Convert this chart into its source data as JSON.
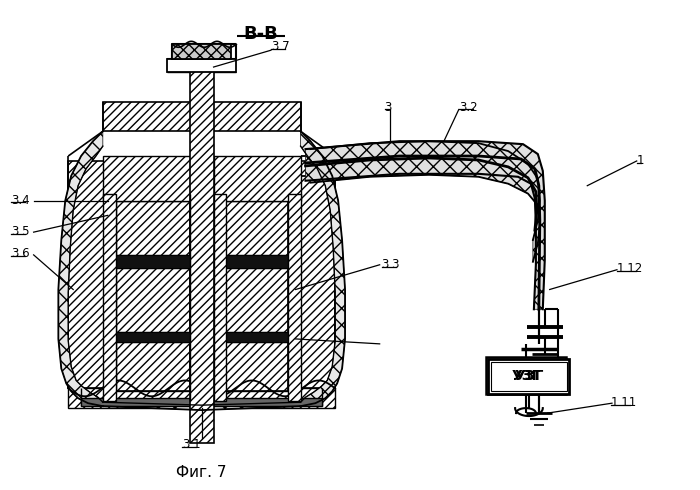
{
  "bg_color": "#ffffff",
  "line_color": "#000000",
  "title": "В-В",
  "caption": "Фиг. 7"
}
